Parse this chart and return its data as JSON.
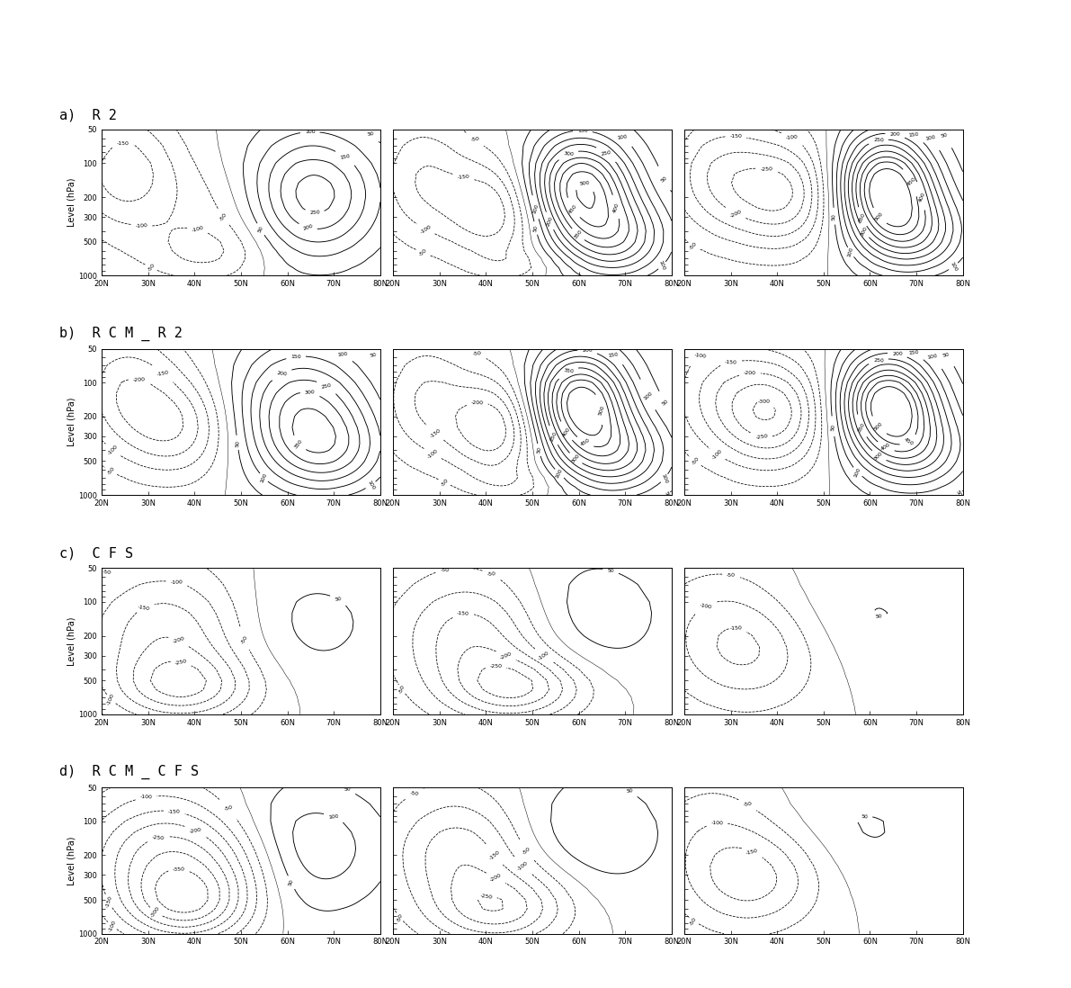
{
  "row_label_texts": [
    "a)  R 2",
    "b)  R C M _ R 2",
    "c)  C F S",
    "d)  R C M _ C F S"
  ],
  "lat_ticks": [
    20,
    30,
    40,
    50,
    60,
    70,
    80
  ],
  "lat_labels": [
    "20N",
    "30N",
    "40N",
    "50N",
    "60N",
    "70N",
    "80N"
  ],
  "pressure_levels": [
    50,
    100,
    200,
    300,
    500,
    1000
  ],
  "ylabel": "Level (hPa)",
  "figsize": [
    11.91,
    10.98
  ],
  "background_color": "#ffffff",
  "n_rows": 4,
  "n_cols": 3
}
